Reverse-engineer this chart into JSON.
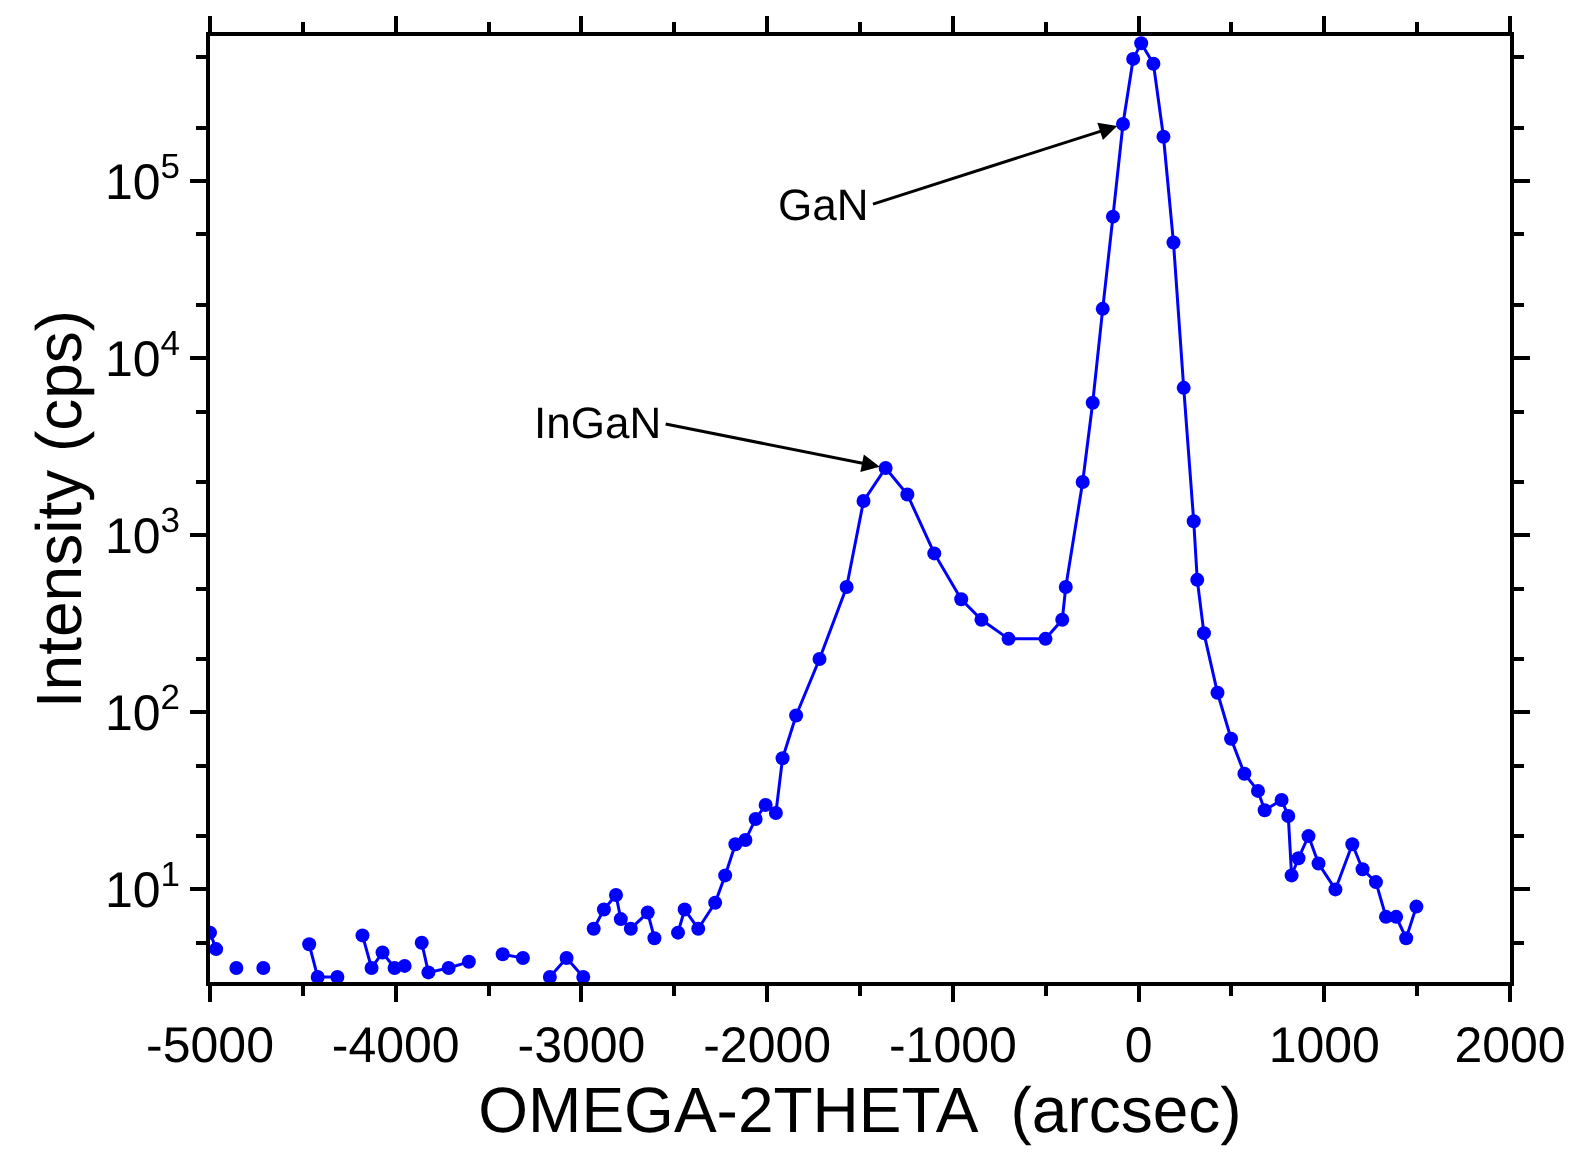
{
  "chart_data": {
    "type": "line",
    "xlabel": "OMEGA-2THETA  (arcsec)",
    "ylabel": "Intensity (cps)",
    "log": "y",
    "marker": "circle",
    "line_style": "solid",
    "xlim": [
      -5000,
      2000
    ],
    "xticks": [
      -5000,
      -4000,
      -3000,
      -2000,
      -1000,
      0,
      1000,
      2000
    ],
    "ylim": [
      3,
      660000
    ],
    "yticks": [
      {
        "value": 10,
        "label": "10$^{1}$"
      },
      {
        "value": 100,
        "label": "10$^{2}$"
      },
      {
        "value": 1000,
        "label": "10$^{3}$"
      },
      {
        "value": 10000,
        "label": "10$^{4}$"
      },
      {
        "value": 100000,
        "label": "10$^{5}$"
      }
    ],
    "annotations": [
      {
        "text": "GaN",
        "x": -84,
        "y": 210000
      },
      {
        "text": "InGaN",
        "x": -1362,
        "y": 2400
      }
    ],
    "series": [
      {
        "color": "#0000ff",
        "x": [
          -5000,
          -4967,
          -4950,
          -4858,
          -4800,
          -4713,
          -4660,
          -4513,
          -4466,
          -4420,
          -4314,
          -4260,
          -4179,
          -4130,
          -4071,
          -4006,
          -3952,
          -3916,
          -3860,
          -3824,
          -3715,
          -3606,
          -3533,
          -3424,
          -3315,
          -3243,
          -3170,
          -3080,
          -2990,
          -2960,
          -2934,
          -2879,
          -2814,
          -2788,
          -2734,
          -2643,
          -2607,
          -2571,
          -2480,
          -2444,
          -2371,
          -2280,
          -2226,
          -2171,
          -2117,
          -2062,
          -2008,
          -1953,
          -1917,
          -1844,
          -1718,
          -1572,
          -1481,
          -1362,
          -1245,
          -1100,
          -955,
          -846,
          -700,
          -501,
          -411,
          -392,
          -301,
          -247,
          -193,
          -138,
          -84,
          -29,
          14,
          80,
          134,
          188,
          243,
          297,
          316,
          352,
          425,
          498,
          570,
          643,
          679,
          770,
          806,
          824,
          861,
          915,
          969,
          1060,
          1151,
          1206,
          1278,
          1332,
          1387,
          1441,
          1496
        ],
        "values": [
          5.7,
          4.6,
          null,
          3.6,
          null,
          3.6,
          null,
          null,
          4.9,
          3.2,
          3.2,
          null,
          5.5,
          3.6,
          4.4,
          3.6,
          3.7,
          null,
          5.0,
          3.4,
          3.6,
          3.9,
          null,
          4.3,
          4.1,
          null,
          3.2,
          4.1,
          3.2,
          null,
          6.0,
          7.7,
          9.3,
          6.8,
          6.0,
          7.4,
          5.3,
          null,
          5.7,
          7.7,
          6.0,
          8.4,
          12,
          18,
          19,
          25,
          30,
          27,
          55,
          96,
          200,
          510,
          1560,
          2400,
          1700,
          790,
          435,
          333,
          260,
          260,
          333,
          510,
          2000,
          5600,
          19000,
          63000,
          210000,
          490000,
          600000,
          460000,
          178000,
          45000,
          6800,
          1200,
          560,
          280,
          129,
          71,
          45,
          36,
          28,
          32,
          26,
          12,
          15,
          20,
          14,
          10,
          18,
          13,
          11,
          7.0,
          7.0,
          5.3,
          8.0
        ]
      }
    ]
  }
}
